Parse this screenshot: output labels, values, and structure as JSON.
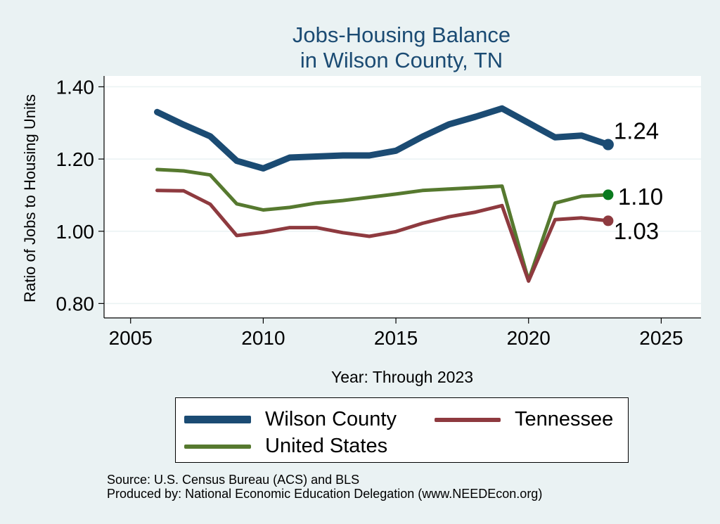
{
  "chart_data": {
    "type": "line",
    "title": [
      "Jobs-Housing Balance",
      "in Wilson County, TN"
    ],
    "xlabel": "Year: Through 2023",
    "ylabel": "Ratio of Jobs to Housing Units",
    "xlim": [
      2004,
      2026.5
    ],
    "ylim": [
      0.76,
      1.43
    ],
    "xticks": [
      2005,
      2010,
      2015,
      2020,
      2025
    ],
    "yticks": [
      0.8,
      1.0,
      1.2,
      1.4
    ],
    "ytick_labels": [
      "0.80",
      "1.00",
      "1.20",
      "1.40"
    ],
    "grid": true,
    "x": [
      2006,
      2007,
      2008,
      2009,
      2010,
      2011,
      2012,
      2013,
      2014,
      2015,
      2016,
      2017,
      2018,
      2019,
      2020,
      2021,
      2022,
      2023
    ],
    "series": [
      {
        "name": "Wilson County",
        "color": "#1b4b73",
        "values": [
          1.33,
          1.295,
          1.263,
          1.195,
          1.174,
          1.204,
          1.207,
          1.21,
          1.21,
          1.223,
          1.262,
          1.296,
          1.317,
          1.34,
          1.3,
          1.26,
          1.265,
          1.24
        ],
        "end_label": "1.24"
      },
      {
        "name": "Tennessee",
        "color": "#8e3a3f",
        "values": [
          1.113,
          1.112,
          1.075,
          0.988,
          0.997,
          1.01,
          1.01,
          0.996,
          0.986,
          0.999,
          1.022,
          1.04,
          1.053,
          1.071,
          0.862,
          1.032,
          1.037,
          1.029
        ],
        "end_label": "1.03"
      },
      {
        "name": "United States",
        "color": "#56792f",
        "values": [
          1.171,
          1.167,
          1.156,
          1.076,
          1.059,
          1.066,
          1.078,
          1.085,
          1.094,
          1.103,
          1.113,
          1.117,
          1.121,
          1.125,
          0.864,
          1.078,
          1.097,
          1.101
        ],
        "end_label": "1.10",
        "marker_color": "#0a7a1e"
      }
    ],
    "legend": [
      "Wilson County",
      "Tennessee",
      "United States"
    ]
  },
  "footer": {
    "source": "Source: U.S. Census Bureau (ACS) and BLS",
    "produced": "Produced by: National Economic Education Delegation (www.NEEDEcon.org)"
  }
}
